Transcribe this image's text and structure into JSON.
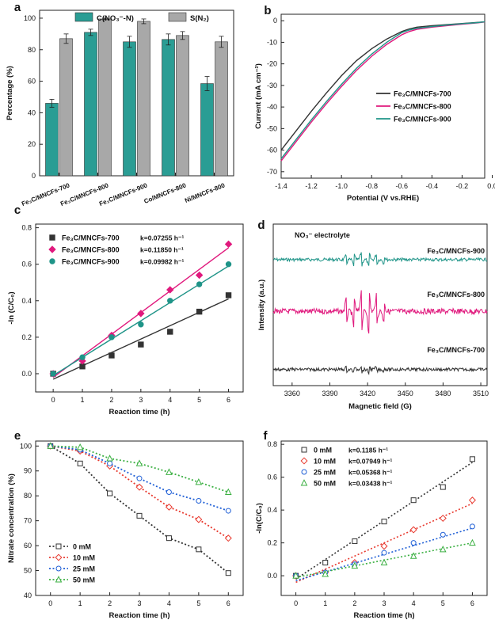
{
  "chart_data": [
    {
      "panel": "a",
      "type": "bar",
      "ylabel": "Percentage (%)",
      "ylim": [
        0,
        105
      ],
      "yticks": [
        0,
        20,
        40,
        60,
        80,
        100
      ],
      "categories": [
        "Fe₃C/MNCFs-700",
        "Fe₃C/MNCFs-800",
        "Fe₃C/MNCFs-900",
        "Co/MNCFs-800",
        "Ni/MNCFs-800"
      ],
      "legend_position": "top-center",
      "series": [
        {
          "name": "C(NO₃⁻-N)",
          "color": "#2a9d94",
          "values": [
            46,
            91,
            85,
            86.5,
            58.5
          ],
          "errors": [
            2.5,
            2,
            3.5,
            3.5,
            4.5
          ]
        },
        {
          "name": "S(N₂)",
          "color": "#a8a8a8",
          "values": [
            87,
            99.5,
            98,
            89,
            85
          ],
          "errors": [
            3,
            0.5,
            1.5,
            2.5,
            3.5
          ]
        }
      ]
    },
    {
      "panel": "b",
      "type": "line",
      "xlabel": "Potential (V vs.RHE)",
      "ylabel": "Current (mA cm⁻²)",
      "xlim": [
        -1.4,
        -0.05
      ],
      "ylim": [
        -73,
        3
      ],
      "xticks": [
        "-1.4",
        "-1.2",
        "-1.0",
        "-0.8",
        "-0.6",
        "-0.4",
        "-0.2",
        "0.0"
      ],
      "xtick_values": [
        -1.4,
        -1.2,
        -1.0,
        -0.8,
        -0.6,
        -0.4,
        -0.2,
        0.0
      ],
      "yticks": [
        0,
        -10,
        -20,
        -30,
        -40,
        -50,
        -60,
        -70
      ],
      "legend_position": "center-right",
      "series": [
        {
          "name": "Fe₃C/MNCFs-700",
          "color": "#333333",
          "x": [
            -1.4,
            -1.3,
            -1.2,
            -1.1,
            -1.0,
            -0.9,
            -0.8,
            -0.7,
            -0.6,
            -0.55,
            -0.5,
            -0.4,
            -0.3,
            -0.2,
            -0.1,
            -0.05
          ],
          "y": [
            -60,
            -51,
            -42,
            -33.5,
            -25.5,
            -18.5,
            -13,
            -8.5,
            -5,
            -3.8,
            -3,
            -2.3,
            -1.8,
            -1.3,
            -0.8,
            -0.5
          ]
        },
        {
          "name": "Fe₃C/MNCFs-800",
          "color": "#e0197d",
          "x": [
            -1.4,
            -1.3,
            -1.2,
            -1.1,
            -1.0,
            -0.9,
            -0.8,
            -0.7,
            -0.6,
            -0.55,
            -0.5,
            -0.4,
            -0.3,
            -0.2,
            -0.1,
            -0.05
          ],
          "y": [
            -65,
            -56,
            -47,
            -38.5,
            -30.5,
            -23,
            -16.5,
            -11,
            -6.5,
            -5,
            -4,
            -3,
            -2.3,
            -1.6,
            -1,
            -0.6
          ]
        },
        {
          "name": "Fe₃C/MNCFs-900",
          "color": "#1f9488",
          "x": [
            -1.4,
            -1.3,
            -1.2,
            -1.1,
            -1.0,
            -0.9,
            -0.8,
            -0.7,
            -0.6,
            -0.55,
            -0.5,
            -0.4,
            -0.3,
            -0.2,
            -0.1,
            -0.05
          ],
          "y": [
            -64,
            -55,
            -46,
            -37.5,
            -29.5,
            -22,
            -15.5,
            -10,
            -5.5,
            -4.3,
            -3.5,
            -2.7,
            -2,
            -1.4,
            -0.9,
            -0.5
          ]
        }
      ]
    },
    {
      "panel": "c",
      "type": "scatter",
      "xlabel": "Reaction time (h)",
      "ylabel": "-ln (C/C₀)",
      "xlim": [
        -0.6,
        6.5
      ],
      "ylim": [
        -0.1,
        0.82
      ],
      "xticks": [
        0,
        1,
        2,
        3,
        4,
        5,
        6
      ],
      "yticks": [
        0.0,
        0.2,
        0.4,
        0.6,
        0.8
      ],
      "legend_position": "top-left",
      "series": [
        {
          "name": "Fe₃C/MNCFs-700",
          "k_label": "k=0.07255 h⁻¹",
          "color": "#333333",
          "marker": "square",
          "x": [
            0,
            1,
            2,
            3,
            4,
            5,
            6
          ],
          "y": [
            0.0,
            0.04,
            0.1,
            0.16,
            0.23,
            0.34,
            0.43
          ],
          "fit": [
            [
              -0.03,
              0.0
            ],
            [
              0.41,
              6.0
            ]
          ]
        },
        {
          "name": "Fe₃C/MNCFs-800",
          "k_label": "k=0.11850 h⁻¹",
          "color": "#e0197d",
          "marker": "diamond",
          "x": [
            0,
            1,
            2,
            3,
            4,
            5,
            6
          ],
          "y": [
            0.0,
            0.07,
            0.21,
            0.33,
            0.46,
            0.54,
            0.71
          ],
          "fit": [
            [
              -0.02,
              0.0
            ],
            [
              0.69,
              6.0
            ]
          ]
        },
        {
          "name": "Fe₃C/MNCFs-900",
          "k_label": "k=0.09982 h⁻¹",
          "color": "#1f9488",
          "marker": "circle",
          "x": [
            0,
            1,
            2,
            3,
            4,
            5,
            6
          ],
          "y": [
            0.0,
            0.09,
            0.2,
            0.27,
            0.4,
            0.49,
            0.6
          ],
          "fit": [
            [
              -0.01,
              0.0
            ],
            [
              0.59,
              6.0
            ]
          ]
        }
      ]
    },
    {
      "panel": "d",
      "type": "line",
      "title": "NO₃⁻ electrolyte",
      "xlabel": "Magnetic field (G)",
      "ylabel": "Intensity (a.u.)",
      "xlim": [
        3345,
        3515
      ],
      "xticks": [
        3360,
        3390,
        3420,
        3450,
        3480,
        3510
      ],
      "series": [
        {
          "name": "Fe₃C/MNCFs-900",
          "color": "#1f9488",
          "baseline": 0.78
        },
        {
          "name": "Fe₃C/MNCFs-800",
          "color": "#e0197d",
          "baseline": 0.46
        },
        {
          "name": "Fe₃C/MNCFs-700",
          "color": "#333333",
          "baseline": 0.1
        }
      ]
    },
    {
      "panel": "e",
      "type": "line",
      "xlabel": "Reaction time (h)",
      "ylabel": "Nitrate concentration (%)",
      "xlim": [
        -0.5,
        6.5
      ],
      "ylim": [
        40,
        102
      ],
      "xticks": [
        0,
        1,
        2,
        3,
        4,
        5,
        6
      ],
      "yticks": [
        40,
        50,
        60,
        70,
        80,
        90,
        100
      ],
      "legend_position": "bottom-left",
      "series": [
        {
          "name": "0 mM",
          "color": "#333333",
          "marker": "square",
          "x": [
            0,
            1,
            2,
            3,
            4,
            5,
            6
          ],
          "y": [
            100,
            93,
            81,
            72,
            63,
            58.5,
            49
          ]
        },
        {
          "name": "10 mM",
          "color": "#e8392e",
          "marker": "diamond",
          "x": [
            0,
            1,
            2,
            3,
            4,
            5,
            6
          ],
          "y": [
            100,
            98,
            92,
            83.5,
            75.5,
            70.5,
            63
          ]
        },
        {
          "name": "25 mM",
          "color": "#1f5fd6",
          "marker": "circle",
          "x": [
            0,
            1,
            2,
            3,
            4,
            5,
            6
          ],
          "y": [
            100,
            98.5,
            93,
            87,
            81.5,
            78,
            74
          ]
        },
        {
          "name": "50 mM",
          "color": "#3cb043",
          "marker": "triangle",
          "x": [
            0,
            1,
            2,
            3,
            4,
            5,
            6
          ],
          "y": [
            100,
            99.5,
            95,
            93,
            89.5,
            85.5,
            81.5
          ]
        }
      ]
    },
    {
      "panel": "f",
      "type": "scatter",
      "xlabel": "Reaction time (h)",
      "ylabel": "-ln(C/C₀)",
      "xlim": [
        -0.5,
        6.5
      ],
      "ylim": [
        -0.12,
        0.82
      ],
      "xticks": [
        0,
        1,
        2,
        3,
        4,
        5,
        6
      ],
      "yticks": [
        0.0,
        0.2,
        0.4,
        0.6,
        0.8
      ],
      "legend_position": "top-left",
      "series": [
        {
          "name": "0 mM",
          "k_label": "k=0.1185 h⁻¹",
          "color": "#333333",
          "marker": "square",
          "x": [
            0,
            1,
            2,
            3,
            4,
            5,
            6
          ],
          "y": [
            0.0,
            0.08,
            0.21,
            0.33,
            0.46,
            0.54,
            0.71
          ],
          "fit": [
            [
              -0.02,
              0.0
            ],
            [
              0.69,
              6.0
            ]
          ]
        },
        {
          "name": "10 mM",
          "k_label": "k=0.07949 h⁻¹",
          "color": "#e8392e",
          "marker": "diamond",
          "x": [
            0,
            1,
            2,
            3,
            4,
            5,
            6
          ],
          "y": [
            0.0,
            0.02,
            0.08,
            0.18,
            0.28,
            0.35,
            0.46
          ],
          "fit": [
            [
              -0.04,
              0.0
            ],
            [
              0.44,
              6.0
            ]
          ]
        },
        {
          "name": "25 mM",
          "k_label": "k=0.05368 h⁻¹",
          "color": "#1f5fd6",
          "marker": "circle",
          "x": [
            0,
            1,
            2,
            3,
            4,
            5,
            6
          ],
          "y": [
            0.0,
            0.02,
            0.07,
            0.14,
            0.2,
            0.25,
            0.3
          ],
          "fit": [
            [
              -0.03,
              0.0
            ],
            [
              0.29,
              6.0
            ]
          ]
        },
        {
          "name": "50 mM",
          "k_label": "k=0.03438 h⁻¹",
          "color": "#3cb043",
          "marker": "triangle",
          "x": [
            0,
            1,
            2,
            3,
            4,
            5,
            6
          ],
          "y": [
            0.0,
            0.01,
            0.06,
            0.08,
            0.12,
            0.16,
            0.2
          ],
          "fit": [
            [
              -0.01,
              0.0
            ],
            [
              0.2,
              6.0
            ]
          ]
        }
      ]
    }
  ]
}
